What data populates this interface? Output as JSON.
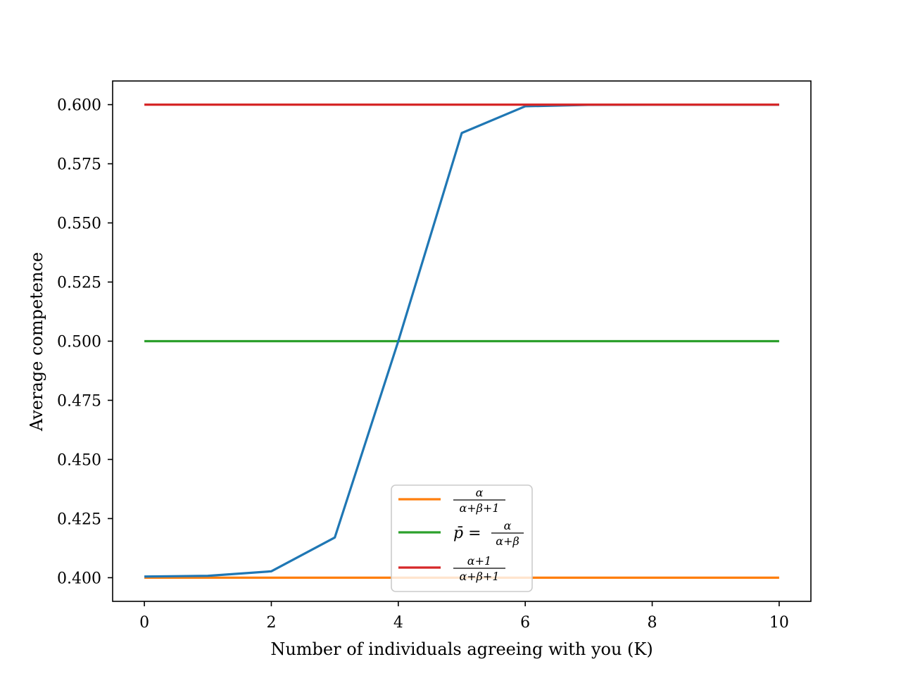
{
  "chart_data": {
    "type": "line",
    "title": "",
    "xlabel": "Number of individuals agreeing with you (K)",
    "ylabel": "Average competence",
    "xlim": [
      -0.5,
      10.5
    ],
    "ylim": [
      0.39,
      0.61
    ],
    "x_ticks": [
      0,
      2,
      4,
      6,
      8,
      10
    ],
    "x_tick_labels": [
      "0",
      "2",
      "4",
      "6",
      "8",
      "10"
    ],
    "y_ticks": [
      0.4,
      0.425,
      0.45,
      0.475,
      0.5,
      0.525,
      0.55,
      0.575,
      0.6
    ],
    "y_tick_labels": [
      "0.400",
      "0.425",
      "0.450",
      "0.475",
      "0.500",
      "0.525",
      "0.550",
      "0.575",
      "0.600"
    ],
    "grid": false,
    "legend_position": "lower center",
    "x": [
      0,
      1,
      2,
      3,
      4,
      5,
      6,
      7,
      8,
      9,
      10
    ],
    "series": [
      {
        "color": "#1f77b4",
        "in_legend": false,
        "values": [
          0.4005,
          0.4008,
          0.4027,
          0.417,
          0.5,
          0.588,
          0.5993,
          0.5999,
          0.6,
          0.6,
          0.6
        ]
      },
      {
        "name": "α / (α+β+1)",
        "color": "#ff7f0e",
        "in_legend": true,
        "legend_parts": {
          "num": "α",
          "den": "α+β+1"
        },
        "values": [
          0.4,
          0.4,
          0.4,
          0.4,
          0.4,
          0.4,
          0.4,
          0.4,
          0.4,
          0.4,
          0.4
        ]
      },
      {
        "name": "p̄ = α / (α+β)",
        "color": "#2ca02c",
        "in_legend": true,
        "legend_parts": {
          "prefix": "p̄ =",
          "num": "α",
          "den": "α+β"
        },
        "values": [
          0.5,
          0.5,
          0.5,
          0.5,
          0.5,
          0.5,
          0.5,
          0.5,
          0.5,
          0.5,
          0.5
        ]
      },
      {
        "name": "(α+1) / (α+β+1)",
        "color": "#d62728",
        "in_legend": true,
        "legend_parts": {
          "num": "α+1",
          "den": "α+β+1"
        },
        "values": [
          0.6,
          0.6,
          0.6,
          0.6,
          0.6,
          0.6,
          0.6,
          0.6,
          0.6,
          0.6,
          0.6
        ]
      }
    ]
  }
}
